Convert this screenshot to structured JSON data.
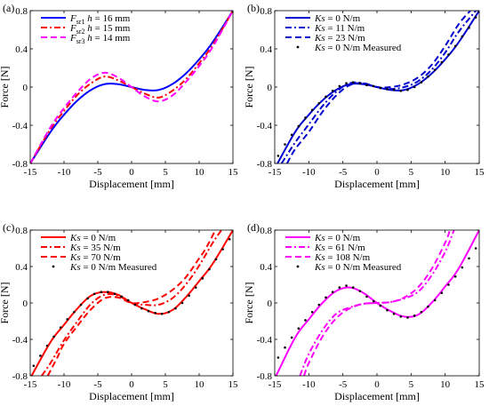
{
  "chart_data": [
    {
      "type": "line",
      "panel_label": "(a)",
      "xlabel": "Displacement [mm]",
      "ylabel": "Force [N]",
      "xlim": [
        -15,
        15
      ],
      "ylim": [
        -0.8,
        0.8
      ],
      "xticks": [
        "-15",
        "-10",
        "-5",
        "0",
        "5",
        "10",
        "15"
      ],
      "yticks": [
        "-0.8",
        "-0.4",
        "0",
        "0.4",
        "0.8"
      ],
      "legend_position": "top-left",
      "series": [
        {
          "name": "F_sr1 h = 16 mm",
          "legend_parts": {
            "sym": "F",
            "sub": "sr1",
            "var": "h",
            "rest": " = 16 mm"
          },
          "color": "#0000ff",
          "style": "solid",
          "x": [
            -15,
            -12,
            -10,
            -8,
            -6,
            -4,
            -2,
            0,
            2,
            4,
            6,
            8,
            10,
            12,
            15
          ],
          "y": [
            -0.8,
            -0.47,
            -0.29,
            -0.14,
            -0.03,
            0.03,
            0.03,
            0.0,
            -0.03,
            -0.03,
            0.03,
            0.14,
            0.29,
            0.47,
            0.8
          ]
        },
        {
          "name": "F_sr2 h = 15 mm",
          "legend_parts": {
            "sym": "F",
            "sub": "sr2",
            "var": "h",
            "rest": " = 15 mm"
          },
          "color": "#ff0000",
          "style": "dashdot",
          "x": [
            -15,
            -12,
            -10,
            -8,
            -6,
            -4,
            -2,
            0,
            2,
            4,
            6,
            8,
            10,
            12,
            15
          ],
          "y": [
            -0.8,
            -0.44,
            -0.25,
            -0.08,
            0.04,
            0.11,
            0.07,
            0.0,
            -0.07,
            -0.11,
            -0.04,
            0.08,
            0.25,
            0.44,
            0.8
          ]
        },
        {
          "name": "F_sr3 h = 14 mm",
          "legend_parts": {
            "sym": "F",
            "sub": "sr3",
            "var": "h",
            "rest": " = 14 mm"
          },
          "color": "#ff00ff",
          "style": "dashed",
          "x": [
            -15,
            -12,
            -10,
            -8,
            -6,
            -4,
            -2,
            0,
            2,
            4,
            6,
            8,
            10,
            12,
            15
          ],
          "y": [
            -0.8,
            -0.42,
            -0.22,
            -0.05,
            0.09,
            0.15,
            0.1,
            0.0,
            -0.1,
            -0.15,
            -0.09,
            0.05,
            0.22,
            0.42,
            0.8
          ]
        }
      ]
    },
    {
      "type": "line",
      "panel_label": "(b)",
      "xlabel": "Displacement [mm]",
      "ylabel": "Force [N]",
      "xlim": [
        -15,
        15
      ],
      "ylim": [
        -0.8,
        0.8
      ],
      "xticks": [
        "-15",
        "-10",
        "-5",
        "0",
        "5",
        "10",
        "15"
      ],
      "yticks": [
        "-0.8",
        "-0.4",
        "0",
        "0.4",
        "0.8"
      ],
      "legend_position": "top-left",
      "series": [
        {
          "name": "Ks = 0 N/m",
          "legend_parts": {
            "sym": "K",
            "sub": "",
            "var": "s",
            "rest": " = 0 N/m"
          },
          "color": "#0000cc",
          "style": "solid",
          "x": [
            -14.6,
            -12,
            -10,
            -8,
            -6,
            -4,
            -2,
            0,
            2,
            4,
            6,
            8,
            10,
            12,
            15
          ],
          "y": [
            -0.8,
            -0.47,
            -0.29,
            -0.14,
            -0.03,
            0.03,
            0.03,
            0.0,
            -0.03,
            -0.03,
            0.03,
            0.14,
            0.29,
            0.47,
            0.8
          ]
        },
        {
          "name": "Ks = 11 N/m",
          "legend_parts": {
            "sym": "K",
            "sub": "",
            "var": "s",
            "rest": " = 11 N/m"
          },
          "color": "#0000cc",
          "style": "dashdot",
          "x": [
            -14.0,
            -12,
            -10,
            -8,
            -6,
            -4,
            -2,
            0,
            2,
            4,
            6,
            8,
            10,
            12,
            14.5
          ],
          "y": [
            -0.8,
            -0.58,
            -0.39,
            -0.2,
            -0.05,
            0.04,
            0.04,
            0.0,
            -0.02,
            0.0,
            0.06,
            0.18,
            0.36,
            0.58,
            0.8
          ]
        },
        {
          "name": "Ks = 23 N/m",
          "legend_parts": {
            "sym": "K",
            "sub": "",
            "var": "s",
            "rest": " = 23 N/m"
          },
          "color": "#0000cc",
          "style": "dashed",
          "x": [
            -13.2,
            -12,
            -10,
            -8,
            -6,
            -4,
            -2,
            0,
            2,
            4,
            6,
            8,
            10,
            12,
            13.7
          ],
          "y": [
            -0.8,
            -0.65,
            -0.47,
            -0.26,
            -0.09,
            0.02,
            0.04,
            0.0,
            0.0,
            0.03,
            0.1,
            0.23,
            0.43,
            0.66,
            0.8
          ]
        },
        {
          "name": "Ks = 0 N/m Measured",
          "legend_parts": {
            "sym": "K",
            "sub": "",
            "var": "s",
            "rest": " = 0 N/m Measured"
          },
          "color": "#000000",
          "style": "dots",
          "x": [
            -14.5,
            -13.5,
            -12.5,
            -11.5,
            -10.5,
            -9.5,
            -8.5,
            -7.5,
            -6.5,
            -5.5,
            -4.5,
            -3.5,
            -2.5,
            -1.5,
            -0.5,
            0.5,
            1.5,
            2.5,
            3.5,
            4.5,
            5.5,
            6.5,
            7.5,
            8.5,
            9.5,
            10.5,
            11.5,
            12.5,
            13.5,
            14.5
          ],
          "y": [
            -0.72,
            -0.6,
            -0.5,
            -0.41,
            -0.32,
            -0.24,
            -0.17,
            -0.1,
            -0.04,
            0.01,
            0.04,
            0.05,
            0.04,
            0.02,
            0.01,
            -0.01,
            -0.02,
            -0.03,
            -0.04,
            -0.03,
            0.0,
            0.05,
            0.11,
            0.18,
            0.26,
            0.34,
            0.43,
            0.53,
            0.62,
            0.73
          ]
        }
      ]
    },
    {
      "type": "line",
      "panel_label": "(c)",
      "xlabel": "Displacement [mm]",
      "ylabel": "Force [N]",
      "xlim": [
        -15,
        15
      ],
      "ylim": [
        -0.8,
        0.8
      ],
      "xticks": [
        "-15",
        "-10",
        "-5",
        "0",
        "5",
        "10",
        "15"
      ],
      "yticks": [
        "-0.8",
        "-0.4",
        "0",
        "0.4",
        "0.8"
      ],
      "legend_position": "top-left",
      "series": [
        {
          "name": "Ks = 0 N/m",
          "legend_parts": {
            "sym": "K",
            "sub": "",
            "var": "s",
            "rest": " = 0 N/m"
          },
          "color": "#ff0000",
          "style": "solid",
          "x": [
            -14.8,
            -12,
            -10,
            -8,
            -6,
            -4,
            -2,
            0,
            2,
            4,
            6,
            8,
            10,
            12,
            15
          ],
          "y": [
            -0.8,
            -0.43,
            -0.24,
            -0.06,
            0.08,
            0.12,
            0.09,
            0.0,
            -0.07,
            -0.12,
            -0.08,
            0.06,
            0.24,
            0.43,
            0.8
          ]
        },
        {
          "name": "Ks = 35 N/m",
          "legend_parts": {
            "sym": "K",
            "sub": "",
            "var": "s",
            "rest": " = 35 N/m"
          },
          "color": "#ff0000",
          "style": "dashdot",
          "x": [
            -13.3,
            -12,
            -10,
            -8,
            -6,
            -4,
            -2,
            0,
            2,
            4,
            6,
            8,
            10,
            12,
            13.3
          ],
          "y": [
            -0.8,
            -0.66,
            -0.41,
            -0.2,
            -0.01,
            0.09,
            0.08,
            0.0,
            -0.02,
            -0.02,
            0.05,
            0.2,
            0.41,
            0.66,
            0.8
          ]
        },
        {
          "name": "Ks = 70 N/m",
          "legend_parts": {
            "sym": "K",
            "sub": "",
            "var": "s",
            "rest": " = 70 N/m"
          },
          "color": "#ff0000",
          "style": "dashed",
          "x": [
            -12.4,
            -11,
            -10,
            -8,
            -6,
            -4,
            -2,
            0,
            2,
            4,
            6,
            8,
            10,
            11,
            12.4
          ],
          "y": [
            -0.8,
            -0.6,
            -0.45,
            -0.25,
            -0.07,
            0.05,
            0.06,
            0.0,
            0.01,
            0.05,
            0.14,
            0.28,
            0.49,
            0.6,
            0.8
          ]
        },
        {
          "name": "Ks = 0 N/m Measured",
          "legend_parts": {
            "sym": "K",
            "sub": "",
            "var": "s",
            "rest": " = 0 N/m Measured"
          },
          "color": "#000000",
          "style": "dots",
          "x": [
            -14.5,
            -13.5,
            -12.5,
            -11.5,
            -10.5,
            -9.5,
            -8.5,
            -7.5,
            -6.5,
            -5.5,
            -4.5,
            -3.5,
            -2.5,
            -1.5,
            -0.5,
            0.5,
            1.5,
            2.5,
            3.5,
            4.5,
            5.5,
            6.5,
            7.5,
            8.5,
            9.5,
            10.5,
            11.5,
            12.5,
            13.5,
            14.5
          ],
          "y": [
            -0.69,
            -0.58,
            -0.47,
            -0.37,
            -0.27,
            -0.18,
            -0.1,
            -0.02,
            0.05,
            0.1,
            0.12,
            0.12,
            0.1,
            0.07,
            0.03,
            -0.02,
            -0.06,
            -0.09,
            -0.11,
            -0.12,
            -0.1,
            -0.06,
            0.0,
            0.08,
            0.17,
            0.27,
            0.37,
            0.48,
            0.59,
            0.7
          ]
        }
      ]
    },
    {
      "type": "line",
      "panel_label": "(d)",
      "xlabel": "Displacement [mm]",
      "ylabel": "Force [N]",
      "xlim": [
        -15,
        15
      ],
      "ylim": [
        -0.8,
        0.8
      ],
      "xticks": [
        "-15",
        "-10",
        "-5",
        "0",
        "5",
        "10",
        "15"
      ],
      "yticks": [
        "-0.8",
        "-0.4",
        "0",
        "0.4",
        "0.8"
      ],
      "legend_position": "top-left",
      "series": [
        {
          "name": "Ks = 0 N/m",
          "legend_parts": {
            "sym": "K",
            "sub": "",
            "var": "s",
            "rest": " = 0 N/m"
          },
          "color": "#ff00ff",
          "style": "solid",
          "x": [
            -14.8,
            -12,
            -10,
            -8,
            -6,
            -4,
            -2,
            0,
            2,
            4,
            6,
            8,
            10,
            12,
            15
          ],
          "y": [
            -0.8,
            -0.38,
            -0.18,
            0.0,
            0.13,
            0.17,
            0.11,
            0.0,
            -0.09,
            -0.15,
            -0.13,
            0.0,
            0.18,
            0.38,
            0.8
          ]
        },
        {
          "name": "Ks = 61 N/m",
          "legend_parts": {
            "sym": "K",
            "sub": "",
            "var": "s",
            "rest": " = 61 N/m"
          },
          "color": "#ff00ff",
          "style": "dashdot",
          "x": [
            -11.3,
            -10,
            -8,
            -6,
            -4,
            -2,
            0,
            2,
            4,
            6,
            8,
            10,
            11.3
          ],
          "y": [
            -0.8,
            -0.56,
            -0.3,
            -0.12,
            -0.05,
            -0.01,
            0.0,
            0.01,
            0.05,
            0.12,
            0.3,
            0.56,
            0.8
          ]
        },
        {
          "name": "Ks = 108 N/m",
          "legend_parts": {
            "sym": "K",
            "sub": "",
            "var": "s",
            "rest": " = 108 N/m"
          },
          "color": "#ff00ff",
          "style": "dashed",
          "x": [
            -10.7,
            -10,
            -8,
            -6,
            -4,
            -2,
            0,
            2,
            4,
            6,
            8,
            10,
            10.7
          ],
          "y": [
            -0.8,
            -0.66,
            -0.37,
            -0.17,
            -0.06,
            -0.01,
            0.0,
            0.01,
            0.06,
            0.17,
            0.37,
            0.66,
            0.8
          ]
        },
        {
          "name": "Ks = 0 N/m Measured",
          "legend_parts": {
            "sym": "K",
            "sub": "",
            "var": "s",
            "rest": " = 0 N/m Measured"
          },
          "color": "#000000",
          "style": "dots",
          "x": [
            -14.5,
            -13.5,
            -12.5,
            -11.5,
            -10.5,
            -9.5,
            -8.5,
            -7.5,
            -6.5,
            -5.5,
            -4.5,
            -3.5,
            -2.5,
            -1.5,
            -0.5,
            0.5,
            1.5,
            2.5,
            3.5,
            4.5,
            5.5,
            6.5,
            7.5,
            8.5,
            9.5,
            10.5,
            11.5,
            12.5,
            13.5,
            14.5
          ],
          "y": [
            -0.6,
            -0.49,
            -0.38,
            -0.28,
            -0.19,
            -0.1,
            -0.02,
            0.06,
            0.12,
            0.17,
            0.19,
            0.17,
            0.13,
            0.07,
            0.02,
            -0.03,
            -0.08,
            -0.12,
            -0.15,
            -0.16,
            -0.14,
            -0.1,
            -0.04,
            0.03,
            0.11,
            0.2,
            0.29,
            0.39,
            0.49,
            0.6
          ]
        }
      ]
    }
  ]
}
